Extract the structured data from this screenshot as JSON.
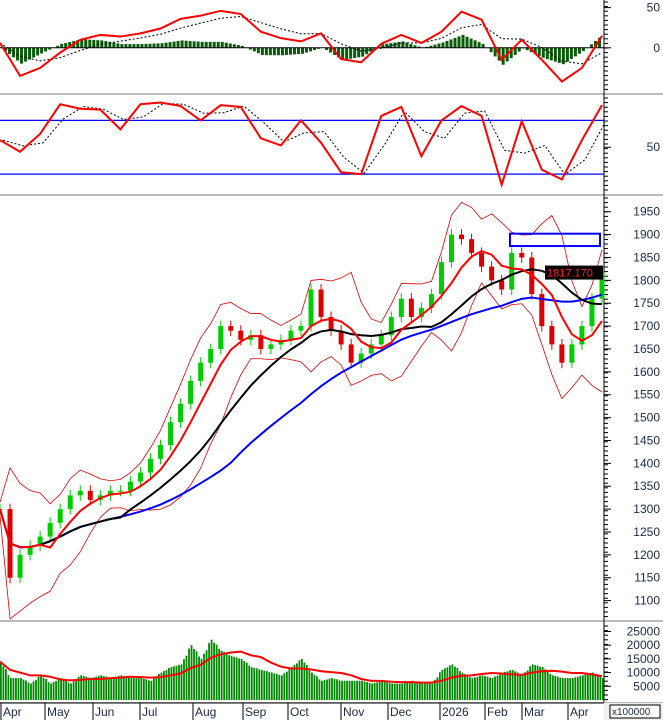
{
  "chart_data": [
    {
      "panel": "macd",
      "type": "line",
      "yticks": [
        "50",
        "0"
      ],
      "tick_values": [
        50,
        0
      ],
      "ylim": [
        -55,
        57
      ],
      "values": [
        6,
        -35,
        -25,
        -6,
        10,
        16,
        14,
        18,
        24,
        36,
        40,
        46,
        42,
        20,
        12,
        8,
        18,
        -14,
        -18,
        5,
        16,
        6,
        20,
        45,
        35,
        -15,
        10,
        -15,
        -42,
        -25,
        15
      ],
      "colors": {
        "macd": "#ff0000",
        "signal": "#000000",
        "histogram": "#0a5c0a"
      }
    },
    {
      "panel": "stochastic",
      "type": "line",
      "yticks": [
        "50"
      ],
      "tick_values": [
        50
      ],
      "ylim": [
        0,
        105
      ],
      "levels": [
        20,
        80
      ],
      "values": [
        58,
        45,
        65,
        98,
        93,
        92,
        70,
        98,
        100,
        96,
        80,
        97,
        95,
        60,
        52,
        80,
        55,
        22,
        20,
        85,
        95,
        40,
        80,
        96,
        85,
        8,
        79,
        25,
        14,
        58,
        97
      ],
      "colors": {
        "k": "#ff0000",
        "d": "#000000",
        "levels": "#0000ff"
      }
    },
    {
      "panel": "price",
      "type": "candlestick",
      "yticks": [
        "1950",
        "1900",
        "1850",
        "1800",
        "1750",
        "1700",
        "1650",
        "1600",
        "1550",
        "1500",
        "1450",
        "1400",
        "1350",
        "1300",
        "1250",
        "1200",
        "1150",
        "1100"
      ],
      "tick_values": [
        1950,
        1900,
        1850,
        1800,
        1750,
        1700,
        1650,
        1600,
        1550,
        1500,
        1450,
        1400,
        1350,
        1300,
        1250,
        1200,
        1150,
        1100
      ],
      "ylim": [
        1062,
        1980
      ],
      "close": [
        1300,
        1150,
        1200,
        1220,
        1240,
        1270,
        1300,
        1330,
        1340,
        1320,
        1330,
        1340,
        1340,
        1360,
        1380,
        1410,
        1440,
        1490,
        1530,
        1580,
        1620,
        1650,
        1700,
        1690,
        1670,
        1680,
        1650,
        1660,
        1670,
        1690,
        1700,
        1780,
        1720,
        1690,
        1660,
        1620,
        1640,
        1660,
        1680,
        1720,
        1760,
        1720,
        1740,
        1770,
        1840,
        1900,
        1890,
        1860,
        1830,
        1800,
        1780,
        1860,
        1850,
        1770,
        1700,
        1660,
        1620,
        1660,
        1700,
        1760,
        1817
      ],
      "last_price": "1817.170",
      "annotation_box": {
        "price_range": [
          1875,
          1902
        ],
        "color": "#0000ff"
      },
      "colors": {
        "up": "#00cc00",
        "down": "#dd0000",
        "ma_short": "#ff0000",
        "ma_mid": "#000000",
        "ma_long": "#0000ff",
        "bands": "#dd0000"
      }
    },
    {
      "panel": "volume",
      "type": "bar",
      "yticks": [
        "25000",
        "20000",
        "15000",
        "10000",
        "5000"
      ],
      "tick_values": [
        25000,
        20000,
        15000,
        10000,
        5000
      ],
      "unit_label": "x100000",
      "ylim": [
        0,
        27000
      ],
      "values": [
        14000,
        8000,
        8000,
        6000,
        9000,
        6000,
        8000,
        6000,
        9000,
        8000,
        9000,
        8000,
        9000,
        8000,
        8000,
        7000,
        10000,
        12000,
        13000,
        20000,
        15000,
        22000,
        18000,
        16000,
        15000,
        12000,
        11000,
        10000,
        9000,
        12000,
        15000,
        10000,
        7000,
        8000,
        7000,
        7000,
        7000,
        6000,
        7000,
        6000,
        6000,
        7000,
        6000,
        6000,
        11000,
        13000,
        10000,
        8000,
        9000,
        8000,
        10000,
        11000,
        9000,
        13000,
        12000,
        9000,
        8000,
        8000,
        9000,
        10000,
        8000
      ],
      "colors": {
        "bar": "#008800",
        "ma": "#ff0000"
      }
    }
  ],
  "x_axis": {
    "months": [
      "Apr",
      "May",
      "Jun",
      "Jul",
      "Aug",
      "Sep",
      "Oct",
      "Nov",
      "Dec",
      "2026",
      "Feb",
      "Mar",
      "Apr"
    ]
  }
}
